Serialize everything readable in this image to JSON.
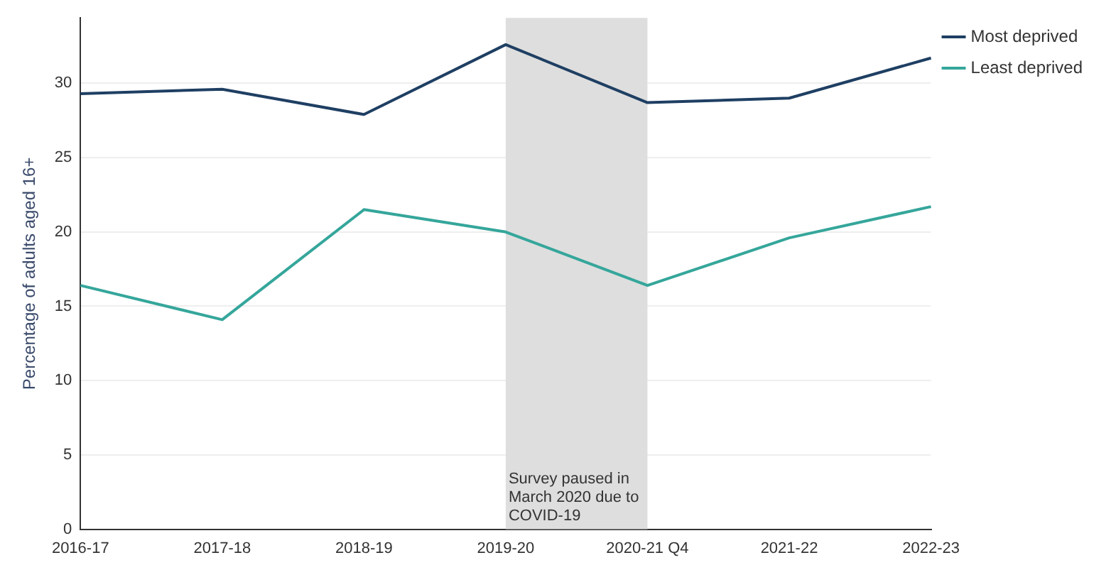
{
  "chart_data": {
    "type": "line",
    "ylabel": "Percentage of adults aged 16+",
    "categories": [
      "2016-17",
      "2017-18",
      "2018-19",
      "2019-20",
      "2020-21 Q4",
      "2021-22",
      "2022-23"
    ],
    "series": [
      {
        "name": "Most deprived",
        "color": "#1f3f63",
        "values": [
          29.3,
          29.6,
          27.9,
          32.6,
          28.7,
          29.0,
          31.7
        ]
      },
      {
        "name": "Least deprived",
        "color": "#35a69b",
        "values": [
          16.4,
          14.1,
          21.5,
          20.0,
          16.4,
          19.6,
          21.7
        ]
      }
    ],
    "ylim": [
      0,
      34.4
    ],
    "yticks": [
      0,
      5,
      10,
      15,
      20,
      25,
      30
    ],
    "grid": "y",
    "legend": "top right",
    "marker": "none",
    "line_style": "solid",
    "bands": [
      {
        "axis": "x",
        "from": "2019-20",
        "to": "2020-21 Q4",
        "label": "Survey paused in March 2020 due to COVID-19",
        "color": "#dedede"
      }
    ]
  }
}
